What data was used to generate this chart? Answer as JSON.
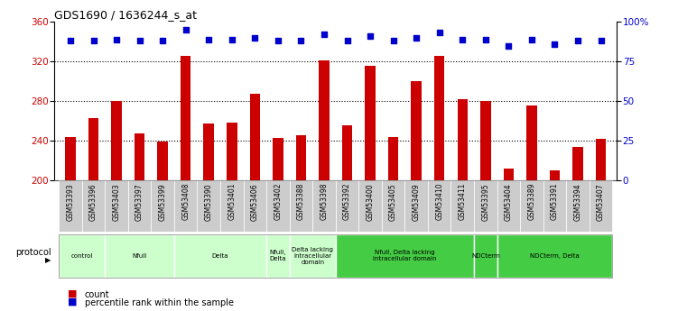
{
  "title": "GDS1690 / 1636244_s_at",
  "samples": [
    "GSM53393",
    "GSM53396",
    "GSM53403",
    "GSM53397",
    "GSM53399",
    "GSM53408",
    "GSM53390",
    "GSM53401",
    "GSM53406",
    "GSM53402",
    "GSM53388",
    "GSM53398",
    "GSM53392",
    "GSM53400",
    "GSM53405",
    "GSM53409",
    "GSM53410",
    "GSM53411",
    "GSM53395",
    "GSM53404",
    "GSM53389",
    "GSM53391",
    "GSM53394",
    "GSM53407"
  ],
  "counts": [
    244,
    263,
    280,
    247,
    239,
    326,
    257,
    258,
    287,
    243,
    246,
    321,
    256,
    316,
    244,
    300,
    326,
    282,
    280,
    212,
    276,
    210,
    234,
    242
  ],
  "percentile_ranks": [
    88,
    88,
    89,
    88,
    88,
    95,
    89,
    89,
    90,
    88,
    88,
    92,
    88,
    91,
    88,
    90,
    93,
    89,
    89,
    85,
    89,
    86,
    88,
    88
  ],
  "ylim_left": [
    200,
    360
  ],
  "ylim_right": [
    0,
    100
  ],
  "yticks_left": [
    200,
    240,
    280,
    320,
    360
  ],
  "yticks_right": [
    0,
    25,
    50,
    75,
    100
  ],
  "bar_color": "#cc0000",
  "dot_color": "#0000cc",
  "groups": [
    {
      "label": "control",
      "start": 0,
      "end": 2,
      "color": "#ccffcc"
    },
    {
      "label": "Nfull",
      "start": 2,
      "end": 5,
      "color": "#ccffcc"
    },
    {
      "label": "Delta",
      "start": 5,
      "end": 9,
      "color": "#ccffcc"
    },
    {
      "label": "Nfull,\nDelta",
      "start": 9,
      "end": 10,
      "color": "#ccffcc"
    },
    {
      "label": "Delta lacking\nintracellular\ndomain",
      "start": 10,
      "end": 12,
      "color": "#ccffcc"
    },
    {
      "label": "Nfull, Delta lacking\nintracellular domain",
      "start": 12,
      "end": 18,
      "color": "#44cc44"
    },
    {
      "label": "NDCterm",
      "start": 18,
      "end": 19,
      "color": "#44cc44"
    },
    {
      "label": "NDCterm, Delta",
      "start": 19,
      "end": 24,
      "color": "#44cc44"
    }
  ],
  "protocol_label": "protocol",
  "legend_count_label": "count",
  "legend_pct_label": "percentile rank within the sample",
  "background_color": "#ffffff",
  "axis_label_color_left": "#cc0000",
  "axis_label_color_right": "#0000cc",
  "sample_bg_color": "#cccccc"
}
